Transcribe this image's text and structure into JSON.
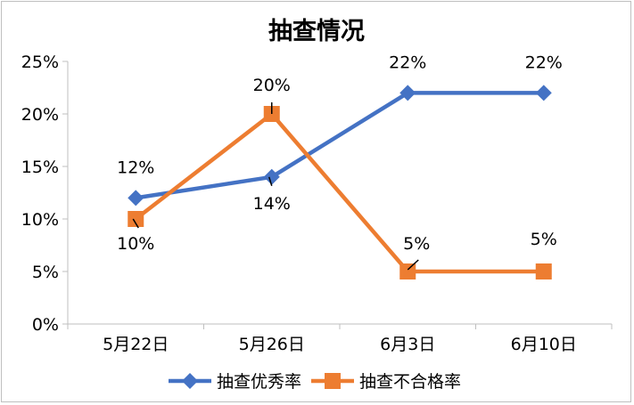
{
  "chart_data": {
    "type": "line",
    "title": "抽查情况",
    "categories": [
      "5月22日",
      "5月26日",
      "6月3日",
      "6月10日"
    ],
    "y_ticks": [
      "0%",
      "5%",
      "10%",
      "15%",
      "20%",
      "25%"
    ],
    "ylim": [
      0,
      25
    ],
    "y_unit": "%",
    "grid": false,
    "legend_position": "bottom",
    "series": [
      {
        "name": "抽查优秀率",
        "values": [
          12,
          14,
          22,
          22
        ],
        "labels": [
          "12%",
          "14%",
          "22%",
          "22%"
        ],
        "color": "#4472c4",
        "marker": "diamond"
      },
      {
        "name": "抽查不合格率",
        "values": [
          10,
          20,
          5,
          5
        ],
        "labels": [
          "10%",
          "20%",
          "5%",
          "5%"
        ],
        "color": "#ed7d31",
        "marker": "square"
      }
    ]
  }
}
